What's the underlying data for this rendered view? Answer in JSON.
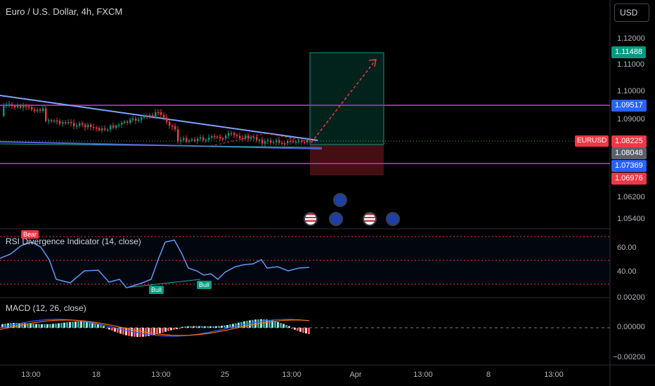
{
  "header": {
    "symbol_title": "Euro / U.S. Dollar, 4h, FXCM",
    "currency_button": "USD"
  },
  "price_axis": [
    "1.12000",
    "1.11000",
    "1.10000",
    "1.09000",
    "1.06200",
    "1.05400"
  ],
  "price_tags": [
    {
      "value": "1.11488",
      "color": "#089981"
    },
    {
      "value": "1.09517",
      "color": "#2962ff"
    },
    {
      "value": "1.08225",
      "color": "#f23645"
    },
    {
      "value": "1.08048",
      "color": "#5d606b"
    },
    {
      "value": "1.07369",
      "color": "#2962ff"
    },
    {
      "value": "1.06976",
      "color": "#f23645"
    }
  ],
  "symbol_tag": "EURUSD",
  "rsi": {
    "label": "RSI Divergence Indicator (14, close)",
    "axis": [
      "60.00",
      "40.00"
    ],
    "signals": [
      "Bear",
      "Bull",
      "Bull"
    ]
  },
  "macd": {
    "label": "MACD (12, 26, close)",
    "axis": [
      "0.00200",
      "0.00000",
      "−0.00200"
    ]
  },
  "time_axis": [
    "13:00",
    "18",
    "13:00",
    "25",
    "13:00",
    "Apr",
    "13:00",
    "8",
    "13:00"
  ],
  "events": [
    "eu-event-icon",
    "us-event-icon",
    "eu-event-icon",
    "us-event-icon",
    "eu-event-icon"
  ]
}
